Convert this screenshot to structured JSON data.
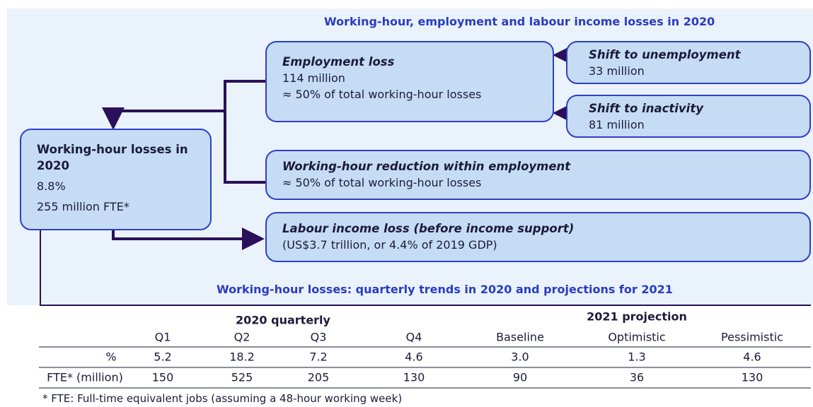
{
  "title": "Working-hour, employment and labour income losses in 2020",
  "nodes": [
    {
      "title": "Working-hour losses in 2020",
      "lines": [
        "8.8%",
        "255 million FTE*"
      ]
    },
    {
      "title": "Employment loss",
      "lines": [
        "114 million",
        "≈ 50% of total working-hour losses"
      ]
    },
    {
      "title": "Shift to unemployment",
      "lines": [
        "33 million"
      ]
    },
    {
      "title": "Shift to inactivity",
      "lines": [
        "81 million"
      ]
    },
    {
      "title": "Working-hour reduction within employment",
      "lines": [
        "≈ 50% of total working-hour losses"
      ]
    },
    {
      "title": "Labour income loss (before income support)",
      "lines": [
        "(US$3.7 trillion, or 4.4% of 2019 GDP)"
      ]
    }
  ],
  "table": {
    "title": "Working-hour losses: quarterly trends in 2020 and projections for 2021",
    "groups": [
      "2020  quarterly",
      "2021 projection"
    ],
    "columns": [
      "Q1",
      "Q2",
      "Q3",
      "Q4",
      "Baseline",
      "Optimistic",
      "Pessimistic"
    ],
    "rows": [
      {
        "label": "%",
        "values": [
          "5.2",
          "18.2",
          "7.2",
          "4.6",
          "3.0",
          "1.3",
          "4.6"
        ]
      },
      {
        "label": "FTE* (million)",
        "values": [
          "150",
          "525",
          "205",
          "130",
          "90",
          "36",
          "130"
        ]
      }
    ],
    "footnote": "* FTE: Full-time equivalent jobs (assuming a 48-hour working week)"
  }
}
